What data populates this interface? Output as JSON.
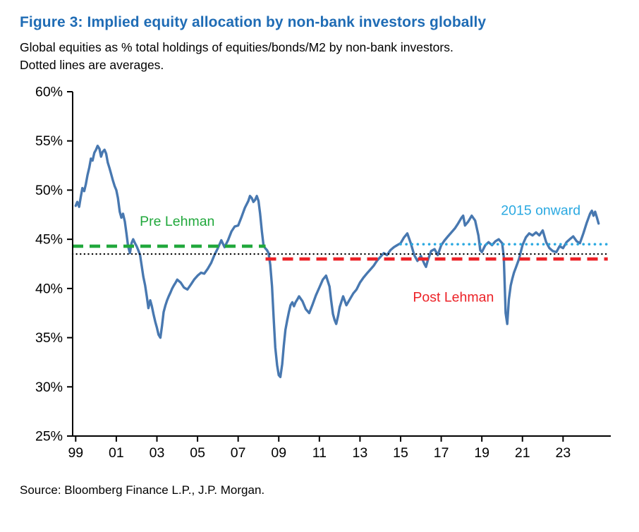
{
  "title": "Figure 3: Implied equity allocation by non-bank investors globally",
  "subtitle_line1": "Global equities as % total holdings of equities/bonds/M2 by non-bank investors.",
  "subtitle_line2": "Dotted lines are averages.",
  "source": "Source: Bloomberg Finance L.P., J.P. Morgan.",
  "colors": {
    "title": "#1F6CB5",
    "series_line": "#4878B0",
    "pre_lehman": "#21A83C",
    "post_lehman": "#EC2227",
    "onward_2015": "#2BA9E1",
    "overall_average": "#000000"
  },
  "chart_data": {
    "type": "line",
    "title": "Implied equity allocation by non-bank investors globally",
    "xlabel": "",
    "ylabel": "",
    "grid": false,
    "legend_position": "none",
    "xlim": [
      1998.85,
      2025.35
    ],
    "ylim": [
      25,
      60
    ],
    "y_ticks": [
      {
        "value": 25,
        "label": "25%"
      },
      {
        "value": 30,
        "label": "30%"
      },
      {
        "value": 35,
        "label": "35%"
      },
      {
        "value": 40,
        "label": "40%"
      },
      {
        "value": 45,
        "label": "45%"
      },
      {
        "value": 50,
        "label": "50%"
      },
      {
        "value": 55,
        "label": "55%"
      },
      {
        "value": 60,
        "label": "60%"
      }
    ],
    "x_ticks": [
      {
        "value": 1999,
        "label": "99"
      },
      {
        "value": 2001,
        "label": "01"
      },
      {
        "value": 2003,
        "label": "03"
      },
      {
        "value": 2005,
        "label": "05"
      },
      {
        "value": 2007,
        "label": "07"
      },
      {
        "value": 2009,
        "label": "09"
      },
      {
        "value": 2011,
        "label": "11"
      },
      {
        "value": 2013,
        "label": "13"
      },
      {
        "value": 2015,
        "label": "15"
      },
      {
        "value": 2017,
        "label": "17"
      },
      {
        "value": 2019,
        "label": "19"
      },
      {
        "value": 2021,
        "label": "21"
      },
      {
        "value": 2023,
        "label": "23"
      }
    ],
    "series": [
      {
        "name": "implied-equity-allocation",
        "label": "Global equities as % total holdings",
        "color": "#4878B0",
        "points": [
          [
            1999.0,
            48.4
          ],
          [
            1999.08,
            48.8
          ],
          [
            1999.17,
            48.3
          ],
          [
            1999.25,
            49.3
          ],
          [
            1999.33,
            50.2
          ],
          [
            1999.42,
            49.9
          ],
          [
            1999.5,
            50.6
          ],
          [
            1999.58,
            51.5
          ],
          [
            1999.67,
            52.3
          ],
          [
            1999.75,
            53.2
          ],
          [
            1999.83,
            53.0
          ],
          [
            1999.92,
            53.8
          ],
          [
            2000.0,
            54.1
          ],
          [
            2000.08,
            54.5
          ],
          [
            2000.17,
            54.2
          ],
          [
            2000.25,
            53.4
          ],
          [
            2000.33,
            53.9
          ],
          [
            2000.42,
            54.1
          ],
          [
            2000.5,
            53.7
          ],
          [
            2000.58,
            52.8
          ],
          [
            2000.67,
            52.2
          ],
          [
            2000.75,
            51.6
          ],
          [
            2000.83,
            51.0
          ],
          [
            2000.92,
            50.4
          ],
          [
            2001.0,
            50.0
          ],
          [
            2001.08,
            49.2
          ],
          [
            2001.17,
            47.8
          ],
          [
            2001.25,
            47.2
          ],
          [
            2001.33,
            47.6
          ],
          [
            2001.42,
            46.8
          ],
          [
            2001.5,
            45.6
          ],
          [
            2001.58,
            44.3
          ],
          [
            2001.67,
            43.6
          ],
          [
            2001.75,
            44.6
          ],
          [
            2001.83,
            45.0
          ],
          [
            2001.92,
            44.6
          ],
          [
            2002.0,
            44.3
          ],
          [
            2002.08,
            43.9
          ],
          [
            2002.17,
            43.4
          ],
          [
            2002.25,
            42.3
          ],
          [
            2002.33,
            41.2
          ],
          [
            2002.42,
            40.3
          ],
          [
            2002.5,
            39.2
          ],
          [
            2002.58,
            38.0
          ],
          [
            2002.67,
            38.8
          ],
          [
            2002.75,
            38.2
          ],
          [
            2002.83,
            37.4
          ],
          [
            2002.92,
            36.6
          ],
          [
            2003.0,
            36.0
          ],
          [
            2003.08,
            35.3
          ],
          [
            2003.17,
            35.0
          ],
          [
            2003.25,
            36.2
          ],
          [
            2003.33,
            37.6
          ],
          [
            2003.42,
            38.3
          ],
          [
            2003.5,
            38.8
          ],
          [
            2003.58,
            39.2
          ],
          [
            2003.67,
            39.6
          ],
          [
            2003.75,
            40.0
          ],
          [
            2003.83,
            40.3
          ],
          [
            2003.92,
            40.6
          ],
          [
            2004.0,
            40.9
          ],
          [
            2004.17,
            40.6
          ],
          [
            2004.33,
            40.1
          ],
          [
            2004.5,
            39.9
          ],
          [
            2004.67,
            40.4
          ],
          [
            2004.83,
            40.9
          ],
          [
            2005.0,
            41.3
          ],
          [
            2005.17,
            41.6
          ],
          [
            2005.33,
            41.5
          ],
          [
            2005.5,
            42.0
          ],
          [
            2005.67,
            42.6
          ],
          [
            2005.83,
            43.4
          ],
          [
            2006.0,
            44.1
          ],
          [
            2006.17,
            44.9
          ],
          [
            2006.33,
            44.2
          ],
          [
            2006.5,
            44.9
          ],
          [
            2006.67,
            45.8
          ],
          [
            2006.83,
            46.3
          ],
          [
            2007.0,
            46.4
          ],
          [
            2007.17,
            47.3
          ],
          [
            2007.33,
            48.2
          ],
          [
            2007.5,
            48.9
          ],
          [
            2007.58,
            49.4
          ],
          [
            2007.67,
            49.2
          ],
          [
            2007.75,
            48.8
          ],
          [
            2007.83,
            49.0
          ],
          [
            2007.92,
            49.4
          ],
          [
            2008.0,
            48.9
          ],
          [
            2008.08,
            47.6
          ],
          [
            2008.17,
            45.8
          ],
          [
            2008.25,
            44.4
          ],
          [
            2008.33,
            44.1
          ],
          [
            2008.42,
            43.9
          ],
          [
            2008.5,
            43.6
          ],
          [
            2008.58,
            42.4
          ],
          [
            2008.67,
            40.2
          ],
          [
            2008.75,
            37.0
          ],
          [
            2008.83,
            34.0
          ],
          [
            2008.92,
            32.2
          ],
          [
            2009.0,
            31.2
          ],
          [
            2009.08,
            31.0
          ],
          [
            2009.17,
            32.3
          ],
          [
            2009.25,
            34.2
          ],
          [
            2009.33,
            35.8
          ],
          [
            2009.42,
            36.8
          ],
          [
            2009.5,
            37.6
          ],
          [
            2009.58,
            38.3
          ],
          [
            2009.67,
            38.6
          ],
          [
            2009.75,
            38.2
          ],
          [
            2009.83,
            38.6
          ],
          [
            2009.92,
            38.9
          ],
          [
            2010.0,
            39.2
          ],
          [
            2010.17,
            38.7
          ],
          [
            2010.33,
            37.9
          ],
          [
            2010.5,
            37.5
          ],
          [
            2010.67,
            38.4
          ],
          [
            2010.83,
            39.3
          ],
          [
            2011.0,
            40.1
          ],
          [
            2011.17,
            40.9
          ],
          [
            2011.33,
            41.3
          ],
          [
            2011.5,
            40.2
          ],
          [
            2011.58,
            38.8
          ],
          [
            2011.67,
            37.4
          ],
          [
            2011.75,
            36.8
          ],
          [
            2011.83,
            36.4
          ],
          [
            2011.92,
            37.2
          ],
          [
            2012.0,
            38.1
          ],
          [
            2012.17,
            39.2
          ],
          [
            2012.33,
            38.3
          ],
          [
            2012.5,
            38.9
          ],
          [
            2012.67,
            39.5
          ],
          [
            2012.83,
            39.9
          ],
          [
            2013.0,
            40.6
          ],
          [
            2013.17,
            41.1
          ],
          [
            2013.33,
            41.5
          ],
          [
            2013.5,
            41.9
          ],
          [
            2013.67,
            42.3
          ],
          [
            2013.83,
            42.8
          ],
          [
            2014.0,
            43.2
          ],
          [
            2014.17,
            43.6
          ],
          [
            2014.33,
            43.4
          ],
          [
            2014.5,
            43.9
          ],
          [
            2014.67,
            44.2
          ],
          [
            2014.83,
            44.4
          ],
          [
            2015.0,
            44.6
          ],
          [
            2015.17,
            45.2
          ],
          [
            2015.33,
            45.6
          ],
          [
            2015.5,
            44.6
          ],
          [
            2015.67,
            43.4
          ],
          [
            2015.83,
            42.8
          ],
          [
            2016.0,
            43.3
          ],
          [
            2016.17,
            42.5
          ],
          [
            2016.25,
            42.2
          ],
          [
            2016.33,
            42.8
          ],
          [
            2016.5,
            43.8
          ],
          [
            2016.67,
            44.0
          ],
          [
            2016.83,
            43.4
          ],
          [
            2017.0,
            44.4
          ],
          [
            2017.17,
            44.9
          ],
          [
            2017.33,
            45.3
          ],
          [
            2017.5,
            45.7
          ],
          [
            2017.67,
            46.1
          ],
          [
            2017.83,
            46.6
          ],
          [
            2018.0,
            47.2
          ],
          [
            2018.08,
            47.4
          ],
          [
            2018.17,
            46.4
          ],
          [
            2018.33,
            46.8
          ],
          [
            2018.5,
            47.4
          ],
          [
            2018.67,
            46.9
          ],
          [
            2018.83,
            45.4
          ],
          [
            2018.92,
            43.9
          ],
          [
            2019.0,
            43.7
          ],
          [
            2019.17,
            44.4
          ],
          [
            2019.33,
            44.7
          ],
          [
            2019.5,
            44.4
          ],
          [
            2019.67,
            44.8
          ],
          [
            2019.83,
            45.0
          ],
          [
            2020.0,
            44.6
          ],
          [
            2020.08,
            43.2
          ],
          [
            2020.17,
            37.5
          ],
          [
            2020.25,
            36.4
          ],
          [
            2020.33,
            38.9
          ],
          [
            2020.42,
            40.3
          ],
          [
            2020.5,
            41.0
          ],
          [
            2020.58,
            41.6
          ],
          [
            2020.67,
            42.1
          ],
          [
            2020.83,
            43.0
          ],
          [
            2021.0,
            44.4
          ],
          [
            2021.17,
            45.2
          ],
          [
            2021.33,
            45.6
          ],
          [
            2021.5,
            45.4
          ],
          [
            2021.67,
            45.7
          ],
          [
            2021.83,
            45.4
          ],
          [
            2022.0,
            45.9
          ],
          [
            2022.17,
            44.7
          ],
          [
            2022.33,
            44.1
          ],
          [
            2022.5,
            43.8
          ],
          [
            2022.67,
            43.7
          ],
          [
            2022.83,
            44.3
          ],
          [
            2023.0,
            44.1
          ],
          [
            2023.17,
            44.7
          ],
          [
            2023.33,
            45.0
          ],
          [
            2023.5,
            45.3
          ],
          [
            2023.67,
            44.8
          ],
          [
            2023.83,
            44.6
          ],
          [
            2024.0,
            45.6
          ],
          [
            2024.17,
            46.7
          ],
          [
            2024.33,
            47.6
          ],
          [
            2024.42,
            47.9
          ],
          [
            2024.5,
            47.4
          ],
          [
            2024.58,
            47.8
          ],
          [
            2024.67,
            47.2
          ],
          [
            2024.75,
            46.6
          ]
        ]
      }
    ],
    "reference_lines": [
      {
        "name": "Overall average",
        "style": "dotted",
        "color": "#000000",
        "y": 43.5,
        "x_start": 1998.85,
        "x_end": 2025.2
      },
      {
        "name": "Pre Lehman average",
        "style": "dashed",
        "color": "#21A83C",
        "y": 44.3,
        "x_start": 1998.85,
        "x_end": 2008.35
      },
      {
        "name": "Post Lehman average",
        "style": "dashed",
        "color": "#EC2227",
        "y": 43.0,
        "x_start": 2008.35,
        "x_end": 2025.2
      },
      {
        "name": "2015 onward average",
        "style": "dotted",
        "color": "#2BA9E1",
        "y": 44.5,
        "x_start": 2015.0,
        "x_end": 2025.2
      }
    ],
    "annotations": [
      {
        "text": "Pre Lehman",
        "x": 2004.0,
        "y": 46.8,
        "color": "#21A83C"
      },
      {
        "text": "Post Lehman",
        "x": 2017.6,
        "y": 39.1,
        "color": "#EC2227"
      },
      {
        "text": "2015 onward",
        "x": 2021.9,
        "y": 47.9,
        "color": "#2BA9E1"
      }
    ]
  }
}
